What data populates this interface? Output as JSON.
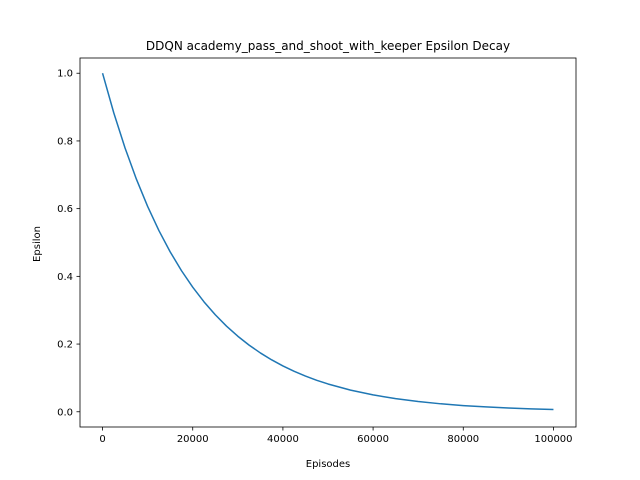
{
  "chart_data": {
    "type": "line",
    "title": "DDQN academy_pass_and_shoot_with_keeper Epsilon Decay",
    "xlabel": "Episodes",
    "ylabel": "Epsilon",
    "xlim": [
      -5000,
      105000
    ],
    "ylim": [
      -0.045,
      1.045
    ],
    "xticks": [
      0,
      20000,
      40000,
      60000,
      80000,
      100000
    ],
    "xtick_labels": [
      "0",
      "20000",
      "40000",
      "60000",
      "80000",
      "100000"
    ],
    "yticks": [
      0.0,
      0.2,
      0.4,
      0.6,
      0.8,
      1.0
    ],
    "ytick_labels": [
      "0.0",
      "0.2",
      "0.4",
      "0.6",
      "0.8",
      "1.0"
    ],
    "grid": false,
    "series": [
      {
        "color": "#1f77b4",
        "x": [
          0,
          2500,
          5000,
          7500,
          10000,
          12500,
          15000,
          17500,
          20000,
          22500,
          25000,
          27500,
          30000,
          32500,
          35000,
          37500,
          40000,
          42500,
          45000,
          47500,
          50000,
          55000,
          60000,
          65000,
          70000,
          75000,
          80000,
          85000,
          90000,
          95000,
          100000
        ],
        "y": [
          1.0,
          0.8825,
          0.7788,
          0.6873,
          0.6065,
          0.5353,
          0.4724,
          0.4169,
          0.3679,
          0.3247,
          0.2865,
          0.2528,
          0.2231,
          0.1969,
          0.1738,
          0.1534,
          0.1353,
          0.1194,
          0.1054,
          0.093,
          0.0821,
          0.0639,
          0.0498,
          0.0388,
          0.0302,
          0.0235,
          0.0183,
          0.0143,
          0.0111,
          0.0087,
          0.0067
        ]
      }
    ]
  }
}
